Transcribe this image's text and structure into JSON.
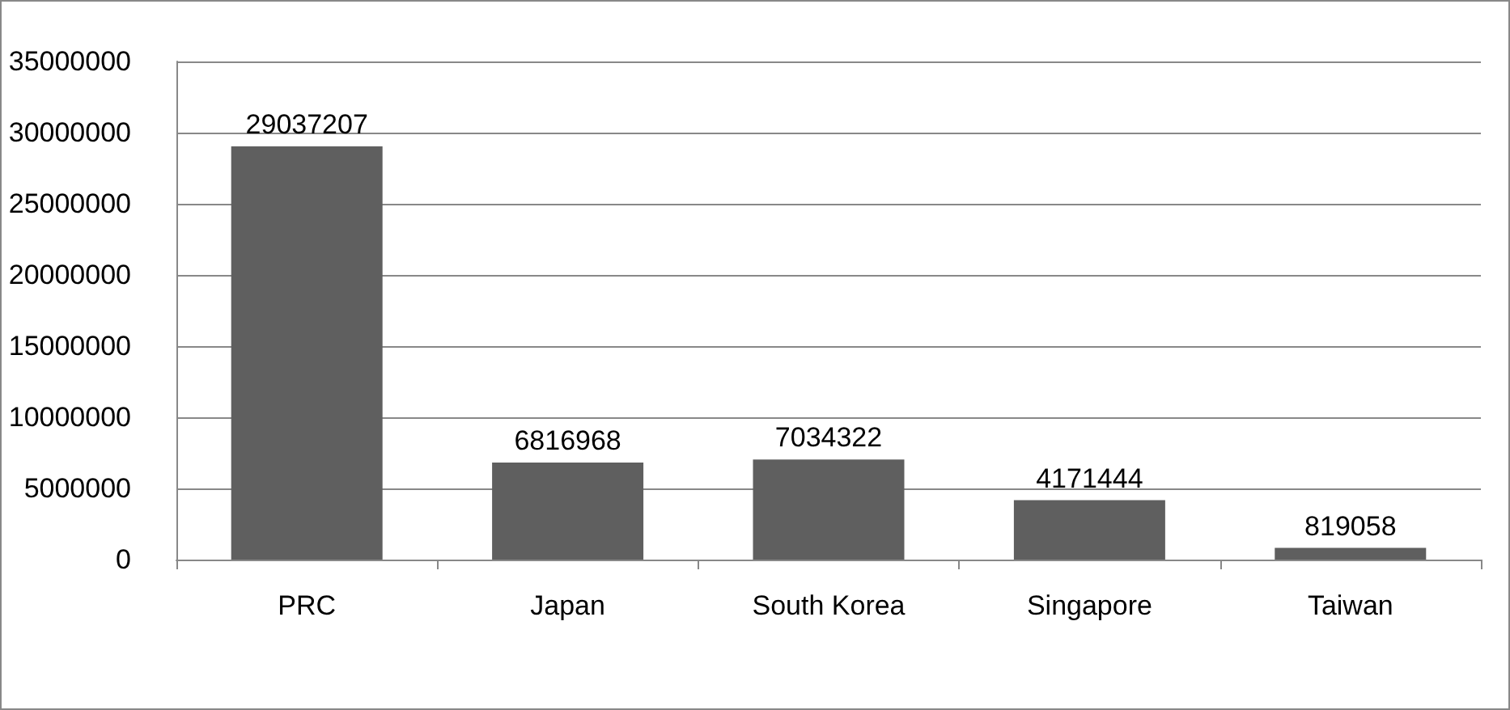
{
  "chart_data": {
    "type": "bar",
    "categories": [
      "PRC",
      "Japan",
      "South Korea",
      "Singapore",
      "Taiwan"
    ],
    "values": [
      29037207,
      6816968,
      7034322,
      4171444,
      819058
    ],
    "color": "#5f5f5f",
    "ylim": [
      0,
      35000000
    ],
    "yticks": [
      0,
      5000000,
      10000000,
      15000000,
      20000000,
      25000000,
      30000000,
      35000000
    ],
    "grid": "y",
    "data_labels": true
  }
}
